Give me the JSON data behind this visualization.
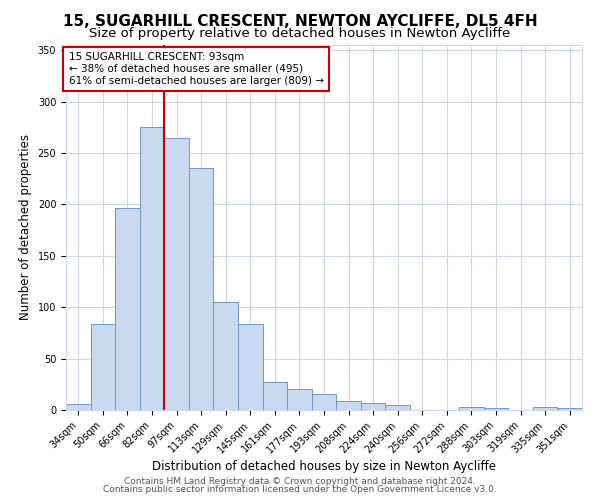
{
  "title": "15, SUGARHILL CRESCENT, NEWTON AYCLIFFE, DL5 4FH",
  "subtitle": "Size of property relative to detached houses in Newton Aycliffe",
  "xlabel": "Distribution of detached houses by size in Newton Aycliffe",
  "ylabel": "Number of detached properties",
  "bin_labels": [
    "34sqm",
    "50sqm",
    "66sqm",
    "82sqm",
    "97sqm",
    "113sqm",
    "129sqm",
    "145sqm",
    "161sqm",
    "177sqm",
    "193sqm",
    "208sqm",
    "224sqm",
    "240sqm",
    "256sqm",
    "272sqm",
    "288sqm",
    "303sqm",
    "319sqm",
    "335sqm",
    "351sqm"
  ],
  "bar_heights": [
    6,
    84,
    196,
    275,
    265,
    235,
    105,
    84,
    27,
    20,
    16,
    9,
    7,
    5,
    0,
    0,
    3,
    2,
    0,
    3,
    2
  ],
  "bar_color": "#c9d9f0",
  "bar_edge_color": "#7096c8",
  "vline_x": 4,
  "vline_color": "#cc0000",
  "annotation_text": "15 SUGARHILL CRESCENT: 93sqm\n← 38% of detached houses are smaller (495)\n61% of semi-detached houses are larger (809) →",
  "annotation_box_color": "#ffffff",
  "annotation_box_edge": "#cc0000",
  "ylim": [
    0,
    355
  ],
  "yticks": [
    0,
    50,
    100,
    150,
    200,
    250,
    300,
    350
  ],
  "footer1": "Contains HM Land Registry data © Crown copyright and database right 2024.",
  "footer2": "Contains public sector information licensed under the Open Government Licence v3.0.",
  "bg_color": "#ffffff",
  "grid_color": "#d0d8e8",
  "title_fontsize": 11,
  "subtitle_fontsize": 9.5,
  "axis_label_fontsize": 8.5,
  "tick_fontsize": 7,
  "annotation_fontsize": 7.5,
  "footer_fontsize": 6.5
}
